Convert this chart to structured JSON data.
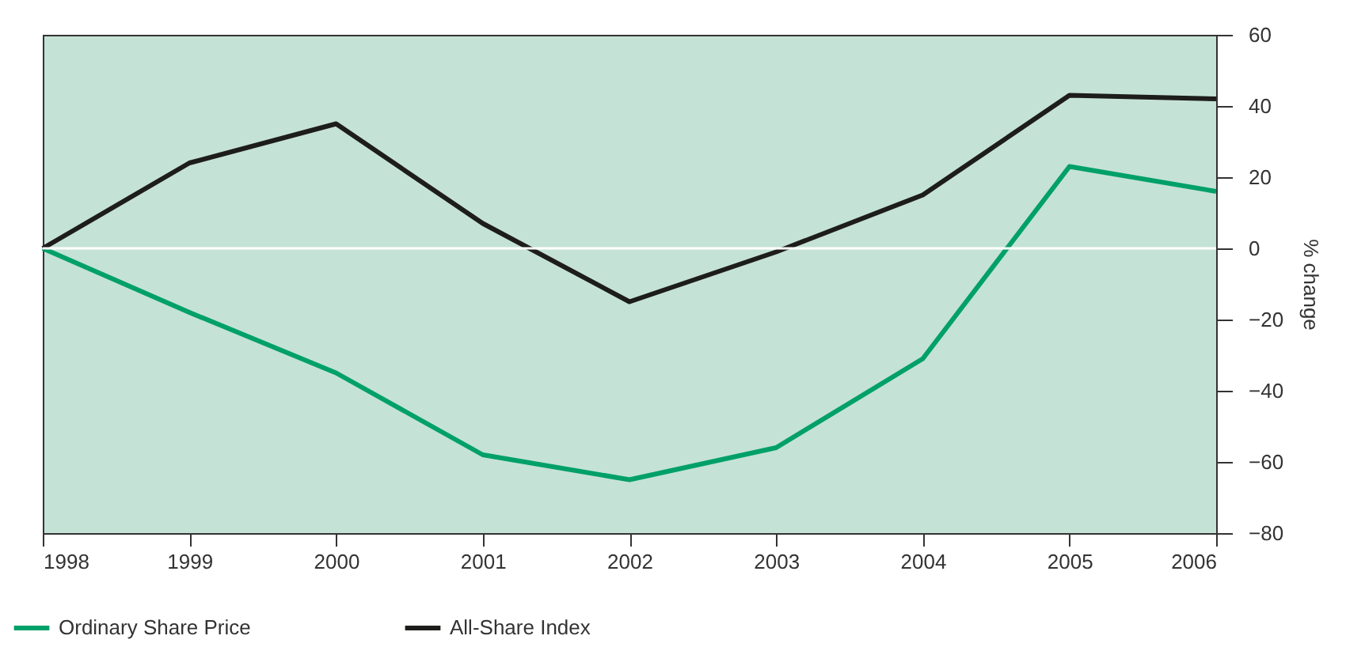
{
  "chart_data": {
    "type": "line",
    "ylabel": "% change",
    "x": [
      1998,
      1999,
      2000,
      2001,
      2002,
      2003,
      2004,
      2005,
      2006
    ],
    "series": [
      {
        "name": "Ordinary Share Price",
        "color": "#00a06a",
        "values": [
          0,
          -18,
          -35,
          -58,
          -65,
          -56,
          -31,
          23,
          16
        ]
      },
      {
        "name": "All-Share Index",
        "color": "#1d1d1b",
        "values": [
          0,
          24,
          35,
          7,
          -15,
          -1,
          15,
          43,
          42
        ]
      }
    ],
    "xlim": [
      1998,
      2006
    ],
    "xticks": [
      1998,
      1999,
      2000,
      2001,
      2002,
      2003,
      2004,
      2005,
      2006
    ],
    "ylim": [
      -80,
      60
    ],
    "yticks": [
      -80,
      -60,
      -40,
      -20,
      0,
      20,
      40,
      60
    ],
    "ref_lines": [
      {
        "axis": "y",
        "value": 0,
        "color": "#ffffff"
      }
    ],
    "grid": false,
    "legend": "bottom left",
    "marker": "none",
    "line_style": "solid"
  }
}
